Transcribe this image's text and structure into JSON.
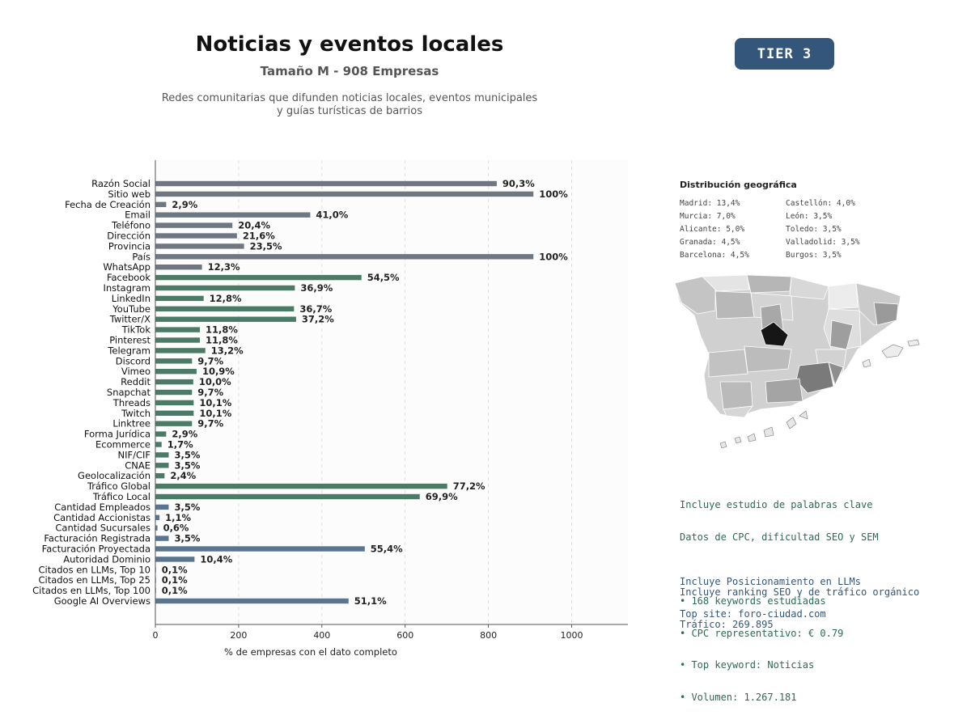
{
  "header": {
    "title": "Noticias y eventos locales",
    "subtitle": "Tamaño M - 908 Empresas",
    "description_line1": "Redes comunitarias que difunden noticias locales, eventos municipales",
    "description_line2": "y guías turísticas de barrios",
    "tier_label": "TIER 3"
  },
  "chart_data": {
    "type": "bar",
    "orientation": "horizontal",
    "xlabel": "% de empresas con el dato completo",
    "xlim": [
      0,
      1135
    ],
    "xticks": [
      0,
      200,
      400,
      600,
      800,
      1000
    ],
    "grid": "vertical dashed",
    "colors": {
      "basic": "#6f7882",
      "social": "#4b7a66",
      "financial": "#5a7590"
    },
    "categories": [
      "Razón Social",
      "Sitio web",
      "Fecha de Creación",
      "Email",
      "Teléfono",
      "Dirección",
      "Provincia",
      "País",
      "WhatsApp",
      "Facebook",
      "Instagram",
      "LinkedIn",
      "YouTube",
      "Twitter/X",
      "TikTok",
      "Pinterest",
      "Telegram",
      "Discord",
      "Vimeo",
      "Reddit",
      "Snapchat",
      "Threads",
      "Twitch",
      "Linktree",
      "Forma Jurídica",
      "Ecommerce",
      "NIF/CIF",
      "CNAE",
      "Geolocalización",
      "Tráfico Global",
      "Tráfico Local",
      "Cantidad Empleados",
      "Cantidad Accionistas",
      "Cantidad Sucursales",
      "Facturación Registrada",
      "Facturación Proyectada",
      "Autoridad Dominio",
      "Citados en LLMs, Top 10",
      "Citados en LLMs, Top 25",
      "Citados en LLMs, Top 100",
      "Google AI Overviews"
    ],
    "values": [
      820,
      908,
      26,
      372,
      185,
      196,
      213,
      908,
      112,
      495,
      335,
      116,
      333,
      338,
      107,
      107,
      120,
      88,
      99,
      91,
      88,
      92,
      92,
      88,
      26,
      15,
      32,
      32,
      22,
      701,
      635,
      32,
      10,
      5,
      32,
      503,
      94,
      1,
      1,
      1,
      464
    ],
    "labels": [
      "90,3%",
      "100%",
      "2,9%",
      "41,0%",
      "20,4%",
      "21,6%",
      "23,5%",
      "100%",
      "12,3%",
      "54,5%",
      "36,9%",
      "12,8%",
      "36,7%",
      "37,2%",
      "11,8%",
      "11,8%",
      "13,2%",
      "9,7%",
      "10,9%",
      "10,0%",
      "9,7%",
      "10,1%",
      "10,1%",
      "9,7%",
      "2,9%",
      "1,7%",
      "3,5%",
      "3,5%",
      "2,4%",
      "77,2%",
      "69,9%",
      "3,5%",
      "1,1%",
      "0,6%",
      "3,5%",
      "55,4%",
      "10,4%",
      "0,1%",
      "0,1%",
      "0,1%",
      "51,1%"
    ],
    "groups": [
      "basic",
      "basic",
      "basic",
      "basic",
      "basic",
      "basic",
      "basic",
      "basic",
      "basic",
      "social",
      "social",
      "social",
      "social",
      "social",
      "social",
      "social",
      "social",
      "social",
      "social",
      "social",
      "social",
      "social",
      "social",
      "social",
      "social",
      "social",
      "social",
      "social",
      "social",
      "social",
      "social",
      "financial",
      "financial",
      "financial",
      "financial",
      "financial",
      "financial",
      "financial",
      "financial",
      "financial",
      "financial"
    ]
  },
  "geo": {
    "title": "Distribución geográfica",
    "items": [
      "Madrid: 13,4%",
      "Castellón: 4,0%",
      "Murcia: 7,0%",
      "León: 3,5%",
      "Alicante: 5,0%",
      "Toledo: 3,5%",
      "Granada: 4,5%",
      "Valladolid: 3,5%",
      "Barcelona: 4,5%",
      "Burgos: 3,5%"
    ]
  },
  "keywords": {
    "line1": "Incluye estudio de palabras clave",
    "line2": "Datos de CPC, dificultad SEO y SEM",
    "bullet1": "• 168 keywords estudiadas",
    "bullet2": "• CPC representativo: € 0.79",
    "bullet3": "• Top keyword: Noticias",
    "bullet4": "• Volumen: 1.267.181"
  },
  "llm": {
    "line1": "Incluye Posicionamiento en LLMs",
    "line2": "Incluye ranking SEO y de tráfico orgánico",
    "site": "Top site: foro-ciudad.com",
    "traffic": "Tráfico: 269.895"
  }
}
